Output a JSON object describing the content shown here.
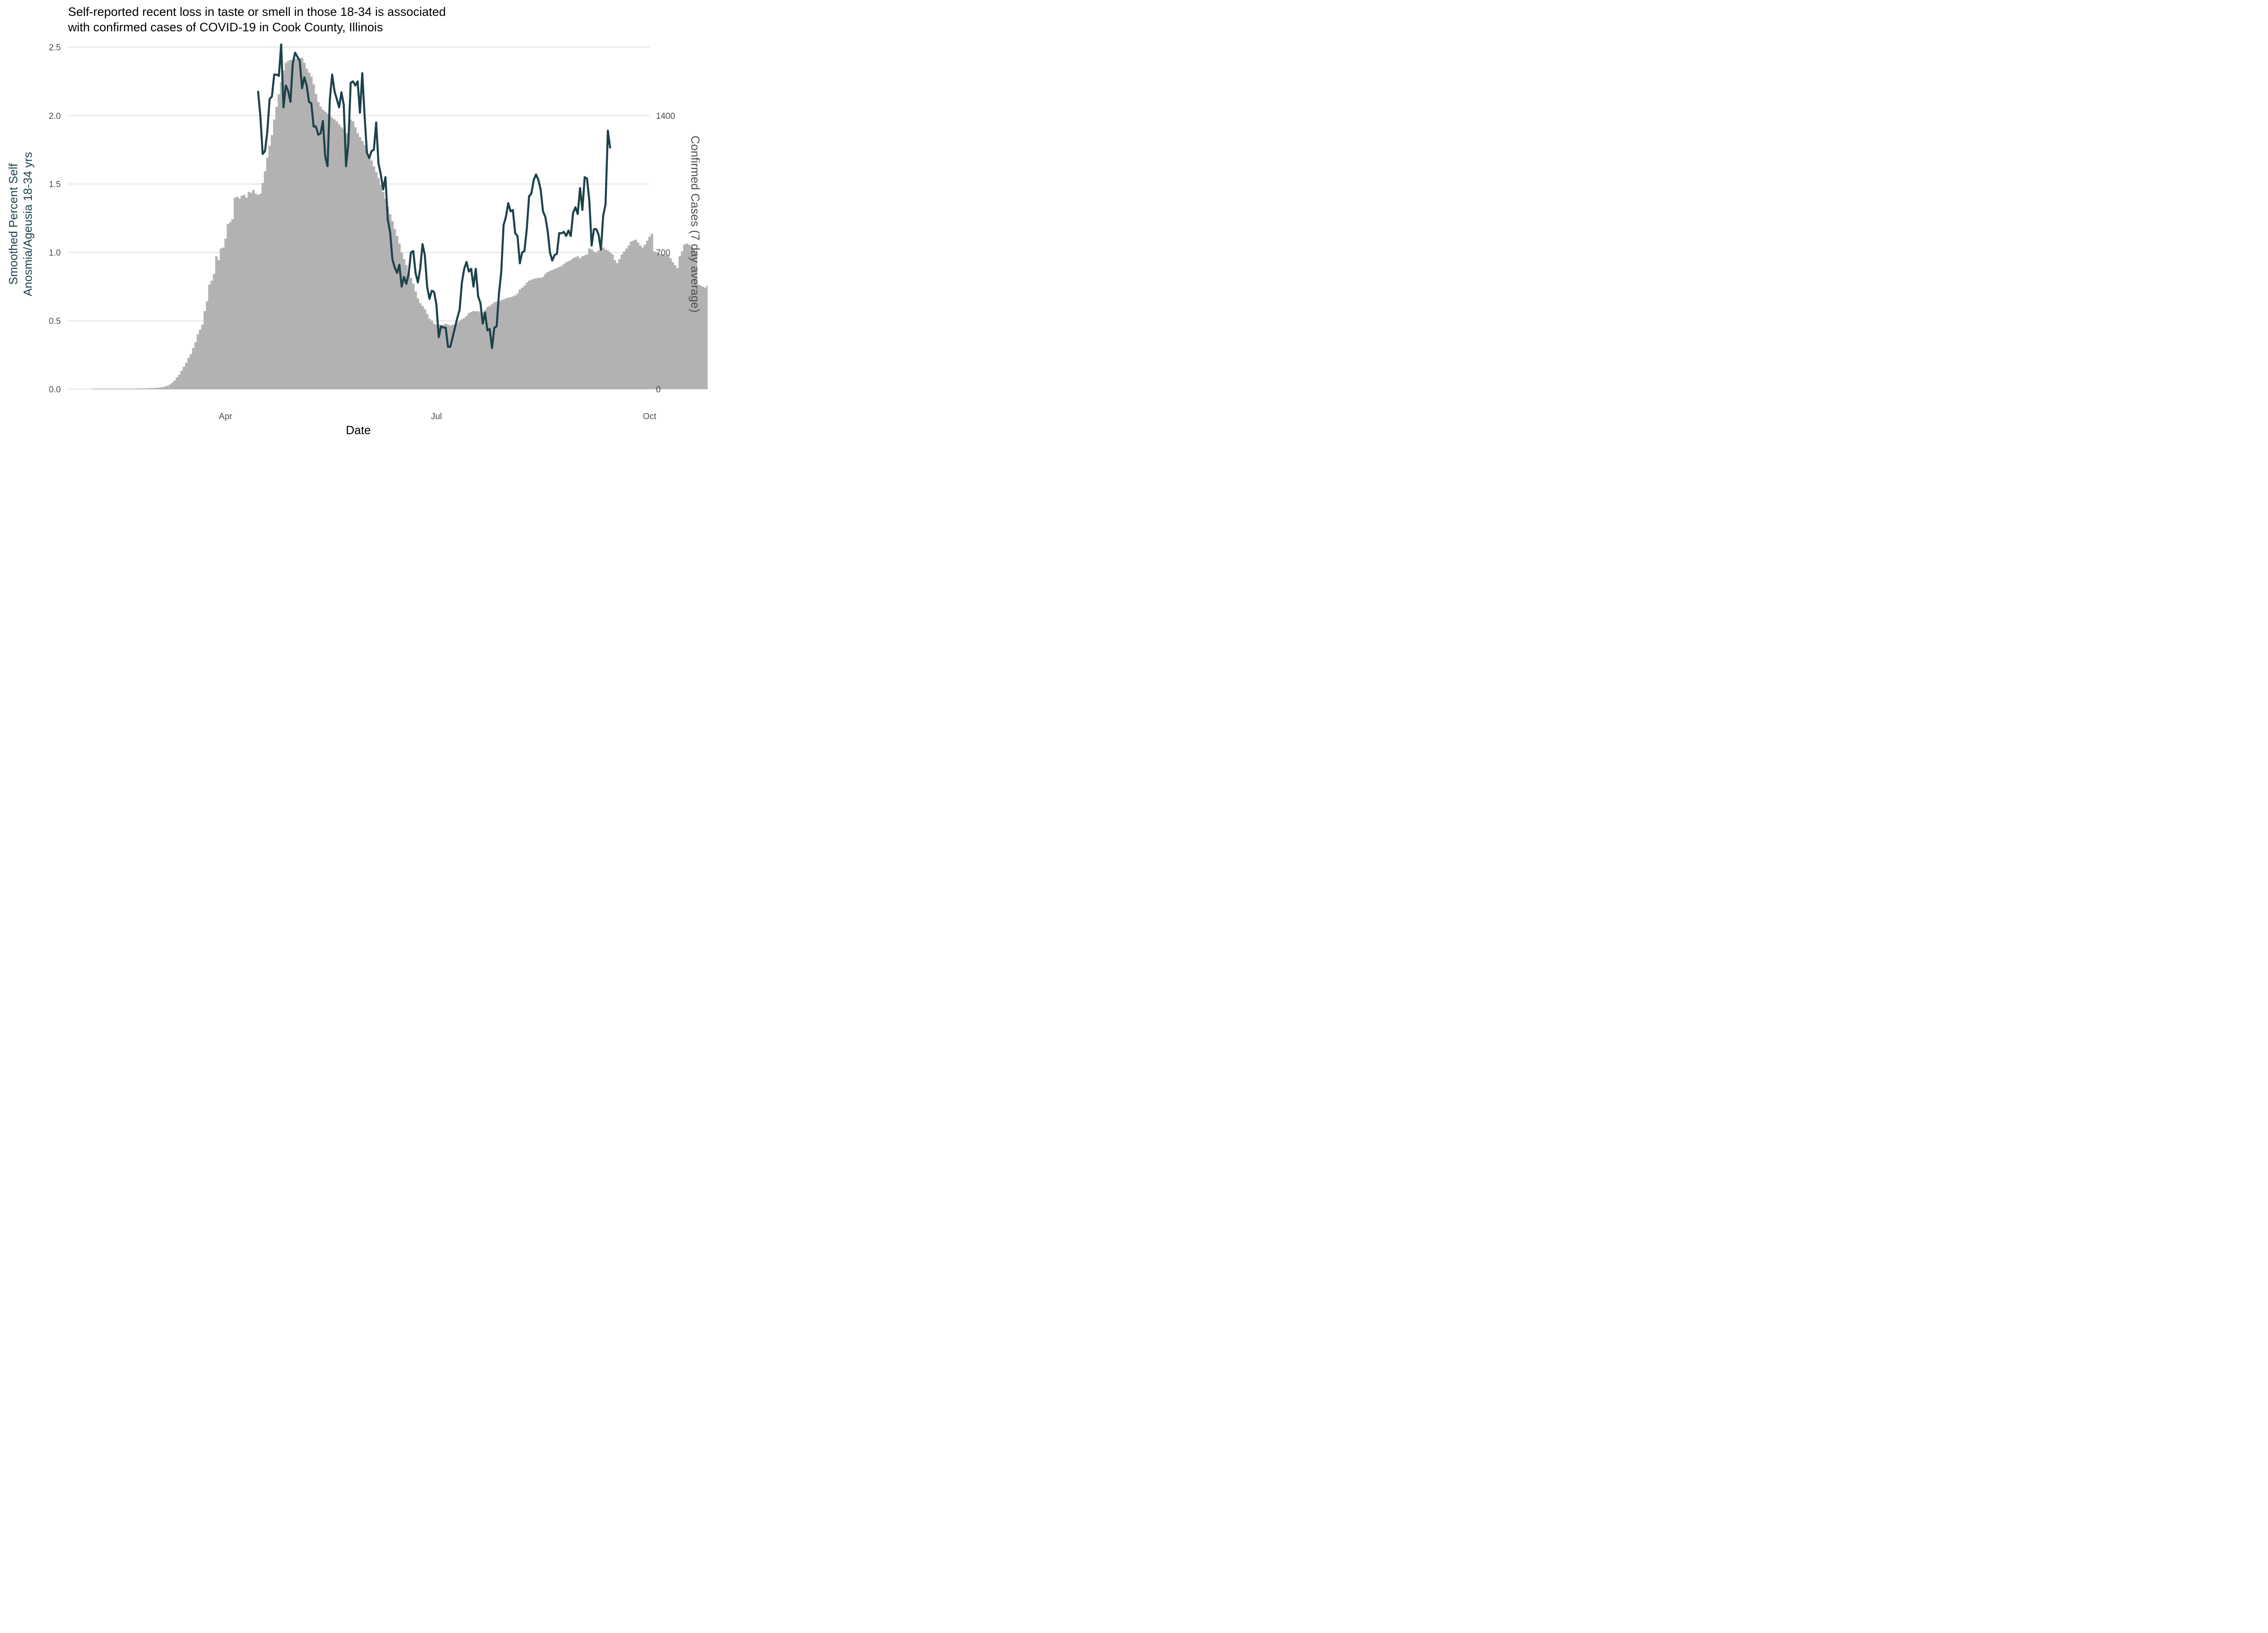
{
  "chart_data": {
    "type": "bar+line",
    "title_lines": [
      "Self-reported recent loss in taste or smell in those 18-34 is associated",
      "with confirmed cases of COVID-19 in Cook County, Illinois"
    ],
    "xlabel": "Date",
    "ylabel_left_lines": [
      "Smoothed Percent Self",
      "Anosmia/Ageusia 18-34 yrs"
    ],
    "ylabel_right": "Confirmed Cases (7 day average)",
    "x_ticks": [
      {
        "label": "Apr",
        "date": "2020-04-01"
      },
      {
        "label": "Jul",
        "date": "2020-07-01"
      },
      {
        "label": "Oct",
        "date": "2020-10-01"
      }
    ],
    "xlim": [
      "2020-01-24",
      "2020-10-01"
    ],
    "y_left_ticks": [
      "0.0",
      "0.5",
      "1.0",
      "1.5",
      "2.0",
      "2.5"
    ],
    "y_left_lim": [
      0,
      2.5
    ],
    "y_right_ticks": [
      "0",
      "700",
      "1400"
    ],
    "y_right_lim": [
      0,
      1750
    ],
    "grid": "horizontal",
    "colors": {
      "line": "#1c424b",
      "bars": "#b2b2b2",
      "left_axis_title": "#1c424b",
      "right_axis_title": "#4d4d4d"
    },
    "series": [
      {
        "kind": "bar",
        "axis": "right",
        "start_date": "2020-02-04",
        "values": [
          3,
          3,
          3,
          3,
          3,
          3,
          3,
          3,
          3,
          3,
          3,
          3,
          3,
          3,
          3,
          3,
          3,
          3,
          3,
          4,
          4,
          4,
          4,
          5,
          5,
          6,
          6,
          7,
          8,
          9,
          11,
          14,
          18,
          24,
          33,
          45,
          60,
          75,
          95,
          115,
          135,
          160,
          180,
          210,
          240,
          280,
          305,
          330,
          400,
          450,
          535,
          555,
          590,
          680,
          660,
          720,
          725,
          770,
          845,
          855,
          870,
          980,
          985,
          975,
          990,
          995,
          980,
          1010,
          1005,
          1020,
          1000,
          995,
          1000,
          1055,
          1115,
          1185,
          1245,
          1300,
          1380,
          1445,
          1510,
          1570,
          1630,
          1670,
          1680,
          1685,
          1685,
          1690,
          1692,
          1695,
          1695,
          1670,
          1640,
          1620,
          1600,
          1560,
          1510,
          1470,
          1445,
          1430,
          1420,
          1410,
          1400,
          1390,
          1380,
          1370,
          1355,
          1340,
          1330,
          1310,
          1300,
          1380,
          1370,
          1340,
          1310,
          1290,
          1270,
          1250,
          1220,
          1195,
          1170,
          1140,
          1110,
          1080,
          1045,
          1010,
          975,
          935,
          895,
          860,
          820,
          785,
          745,
          700,
          665,
          635,
          595,
          570,
          540,
          500,
          465,
          440,
          425,
          410,
          385,
          360,
          350,
          335,
          330,
          330,
          328,
          330,
          335,
          330,
          325,
          330,
          330,
          340,
          350,
          358,
          365,
          375,
          390,
          395,
          400,
          398,
          400,
          392,
          395,
          405,
          420,
          425,
          435,
          445,
          448,
          450,
          455,
          460,
          465,
          468,
          470,
          475,
          480,
          490,
          510,
          520,
          530,
          545,
          555,
          560,
          565,
          567,
          570,
          570,
          575,
          590,
          600,
          605,
          610,
          615,
          620,
          625,
          630,
          640,
          650,
          655,
          660,
          670,
          675,
          680,
          670,
          680,
          685,
          690,
          720,
          715,
          705,
          700,
          710,
          720,
          725,
          715,
          710,
          700,
          690,
          660,
          645,
          665,
          690,
          705,
          720,
          735,
          755,
          760,
          765,
          750,
          735,
          725,
          740,
          760,
          780,
          795,
          705,
          700,
          695,
          690,
          690,
          685,
          685,
          670,
          650,
          635,
          620,
          680,
          705,
          740,
          745,
          740,
          730,
          720,
          710,
          535,
          530,
          525,
          520,
          530,
          545,
          555,
          575,
          585,
          615,
          620
        ]
      },
      {
        "kind": "line",
        "axis": "left",
        "points": [
          [
            "2020-04-15",
            2.18
          ],
          [
            "2020-04-16",
            2.0
          ],
          [
            "2020-04-17",
            1.72
          ],
          [
            "2020-04-18",
            1.74
          ],
          [
            "2020-04-19",
            1.88
          ],
          [
            "2020-04-20",
            2.12
          ],
          [
            "2020-04-21",
            2.14
          ],
          [
            "2020-04-22",
            2.3
          ],
          [
            "2020-04-23",
            2.3
          ],
          [
            "2020-04-24",
            2.29
          ],
          [
            "2020-04-25",
            2.52
          ],
          [
            "2020-04-26",
            2.06
          ],
          [
            "2020-04-27",
            2.22
          ],
          [
            "2020-04-28",
            2.18
          ],
          [
            "2020-04-29",
            2.1
          ],
          [
            "2020-04-30",
            2.38
          ],
          [
            "2020-05-01",
            2.46
          ],
          [
            "2020-05-02",
            2.43
          ],
          [
            "2020-05-03",
            2.4
          ],
          [
            "2020-05-04",
            2.2
          ],
          [
            "2020-05-05",
            2.28
          ],
          [
            "2020-05-06",
            2.22
          ],
          [
            "2020-05-07",
            2.1
          ],
          [
            "2020-05-08",
            2.09
          ],
          [
            "2020-05-09",
            1.92
          ],
          [
            "2020-05-10",
            1.92
          ],
          [
            "2020-05-11",
            1.86
          ],
          [
            "2020-05-12",
            1.87
          ],
          [
            "2020-05-13",
            1.96
          ],
          [
            "2020-05-14",
            1.7
          ],
          [
            "2020-05-15",
            1.63
          ],
          [
            "2020-05-16",
            2.12
          ],
          [
            "2020-05-17",
            2.3
          ],
          [
            "2020-05-18",
            2.18
          ],
          [
            "2020-05-19",
            2.12
          ],
          [
            "2020-05-20",
            2.06
          ],
          [
            "2020-05-21",
            2.17
          ],
          [
            "2020-05-22",
            2.08
          ],
          [
            "2020-05-23",
            1.63
          ],
          [
            "2020-05-24",
            1.8
          ],
          [
            "2020-05-25",
            2.24
          ],
          [
            "2020-05-26",
            2.25
          ],
          [
            "2020-05-27",
            2.22
          ],
          [
            "2020-05-28",
            2.25
          ],
          [
            "2020-05-29",
            2.02
          ],
          [
            "2020-05-30",
            2.31
          ],
          [
            "2020-05-31",
            2.0
          ],
          [
            "2020-06-01",
            1.73
          ],
          [
            "2020-06-02",
            1.69
          ],
          [
            "2020-06-03",
            1.74
          ],
          [
            "2020-06-04",
            1.75
          ],
          [
            "2020-06-05",
            1.95
          ],
          [
            "2020-06-06",
            1.65
          ],
          [
            "2020-06-07",
            1.57
          ],
          [
            "2020-06-08",
            1.46
          ],
          [
            "2020-06-09",
            1.55
          ],
          [
            "2020-06-10",
            1.24
          ],
          [
            "2020-06-11",
            1.15
          ],
          [
            "2020-06-12",
            0.95
          ],
          [
            "2020-06-13",
            0.89
          ],
          [
            "2020-06-14",
            0.85
          ],
          [
            "2020-06-15",
            0.91
          ],
          [
            "2020-06-16",
            0.75
          ],
          [
            "2020-06-17",
            0.82
          ],
          [
            "2020-06-18",
            0.77
          ],
          [
            "2020-06-19",
            0.84
          ],
          [
            "2020-06-20",
            1.0
          ],
          [
            "2020-06-21",
            1.01
          ],
          [
            "2020-06-22",
            0.85
          ],
          [
            "2020-06-23",
            0.78
          ],
          [
            "2020-06-24",
            0.88
          ],
          [
            "2020-06-25",
            1.06
          ],
          [
            "2020-06-26",
            0.98
          ],
          [
            "2020-06-27",
            0.75
          ],
          [
            "2020-06-28",
            0.66
          ],
          [
            "2020-06-29",
            0.72
          ],
          [
            "2020-06-30",
            0.71
          ],
          [
            "2020-07-01",
            0.62
          ],
          [
            "2020-07-02",
            0.38
          ],
          [
            "2020-07-03",
            0.46
          ],
          [
            "2020-07-04",
            0.45
          ],
          [
            "2020-07-05",
            0.45
          ],
          [
            "2020-07-06",
            0.31
          ],
          [
            "2020-07-07",
            0.31
          ],
          [
            "2020-07-08",
            0.38
          ],
          [
            "2020-07-09",
            0.45
          ],
          [
            "2020-07-10",
            0.52
          ],
          [
            "2020-07-11",
            0.58
          ],
          [
            "2020-07-12",
            0.78
          ],
          [
            "2020-07-13",
            0.88
          ],
          [
            "2020-07-14",
            0.93
          ],
          [
            "2020-07-15",
            0.86
          ],
          [
            "2020-07-16",
            0.88
          ],
          [
            "2020-07-17",
            0.75
          ],
          [
            "2020-07-18",
            0.88
          ],
          [
            "2020-07-19",
            0.68
          ],
          [
            "2020-07-20",
            0.63
          ],
          [
            "2020-07-21",
            0.48
          ],
          [
            "2020-07-22",
            0.56
          ],
          [
            "2020-07-23",
            0.43
          ],
          [
            "2020-07-24",
            0.44
          ],
          [
            "2020-07-25",
            0.3
          ],
          [
            "2020-07-26",
            0.45
          ],
          [
            "2020-07-27",
            0.46
          ],
          [
            "2020-07-28",
            0.7
          ],
          [
            "2020-07-29",
            0.86
          ],
          [
            "2020-07-30",
            1.2
          ],
          [
            "2020-07-31",
            1.26
          ],
          [
            "2020-08-01",
            1.36
          ],
          [
            "2020-08-02",
            1.3
          ],
          [
            "2020-08-03",
            1.31
          ],
          [
            "2020-08-04",
            1.14
          ],
          [
            "2020-08-05",
            1.12
          ],
          [
            "2020-08-06",
            0.92
          ],
          [
            "2020-08-07",
            1.0
          ],
          [
            "2020-08-08",
            1.01
          ],
          [
            "2020-08-09",
            1.17
          ],
          [
            "2020-08-10",
            1.41
          ],
          [
            "2020-08-11",
            1.43
          ],
          [
            "2020-08-12",
            1.53
          ],
          [
            "2020-08-13",
            1.57
          ],
          [
            "2020-08-14",
            1.53
          ],
          [
            "2020-08-15",
            1.46
          ],
          [
            "2020-08-16",
            1.3
          ],
          [
            "2020-08-17",
            1.26
          ],
          [
            "2020-08-18",
            1.16
          ],
          [
            "2020-08-19",
            1.0
          ],
          [
            "2020-08-20",
            0.94
          ],
          [
            "2020-08-21",
            0.98
          ],
          [
            "2020-08-22",
            0.99
          ],
          [
            "2020-08-23",
            1.14
          ],
          [
            "2020-08-24",
            1.14
          ],
          [
            "2020-08-25",
            1.15
          ],
          [
            "2020-08-26",
            1.12
          ],
          [
            "2020-08-27",
            1.16
          ],
          [
            "2020-08-28",
            1.12
          ],
          [
            "2020-08-29",
            1.29
          ],
          [
            "2020-08-30",
            1.33
          ],
          [
            "2020-08-31",
            1.28
          ],
          [
            "2020-09-01",
            1.47
          ],
          [
            "2020-09-02",
            1.31
          ],
          [
            "2020-09-03",
            1.55
          ],
          [
            "2020-09-04",
            1.54
          ],
          [
            "2020-09-05",
            1.38
          ],
          [
            "2020-09-06",
            1.05
          ],
          [
            "2020-09-07",
            1.17
          ],
          [
            "2020-09-08",
            1.17
          ],
          [
            "2020-09-09",
            1.13
          ],
          [
            "2020-09-10",
            1.02
          ],
          [
            "2020-09-11",
            1.27
          ],
          [
            "2020-09-12",
            1.35
          ],
          [
            "2020-09-13",
            1.89
          ],
          [
            "2020-09-14",
            1.76
          ]
        ]
      }
    ]
  }
}
